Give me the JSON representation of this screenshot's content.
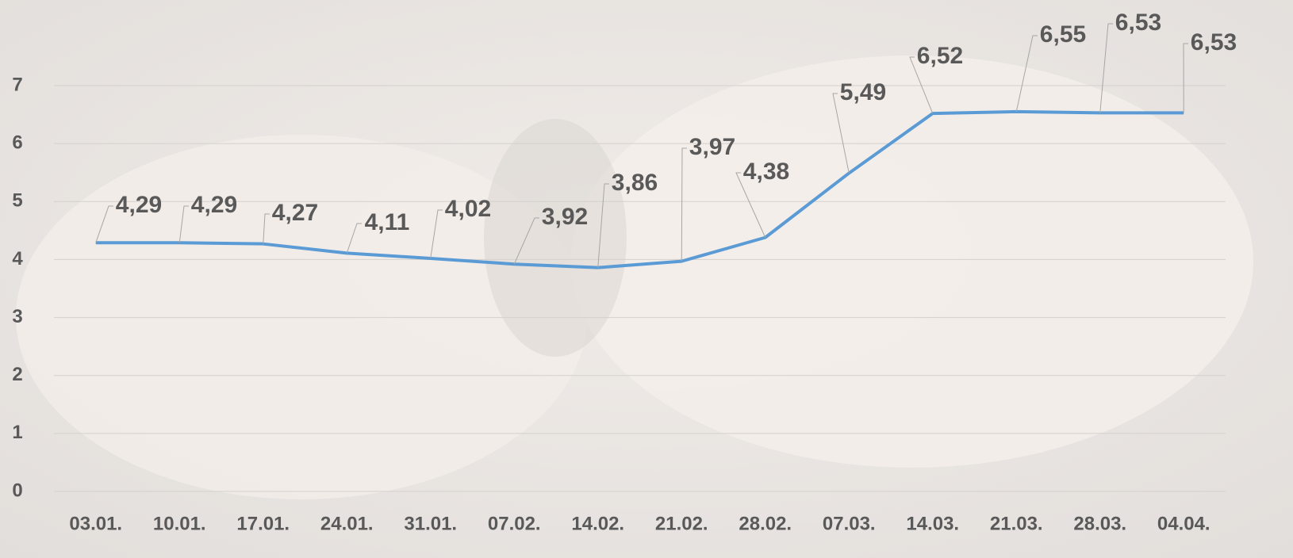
{
  "chart_data": {
    "type": "line",
    "categories": [
      "03.01.",
      "10.01.",
      "17.01.",
      "24.01.",
      "31.01.",
      "07.02.",
      "14.02.",
      "21.02.",
      "28.02.",
      "07.03.",
      "14.03.",
      "21.03.",
      "28.03.",
      "04.04."
    ],
    "series": [
      {
        "color": "#5b9bd5",
        "values": [
          4.29,
          4.29,
          4.27,
          4.11,
          4.02,
          3.92,
          3.86,
          3.97,
          4.38,
          5.49,
          6.52,
          6.55,
          6.53,
          6.53
        ],
        "value_labels": [
          "4,29",
          "4,29",
          "4,27",
          "4,11",
          "4,02",
          "3,92",
          "3,86",
          "3,97",
          "4,38",
          "5,49",
          "6,52",
          "6,55",
          "6,53",
          "6,53"
        ]
      }
    ],
    "ylim": [
      0,
      7
    ],
    "yticks": [
      0,
      1,
      2,
      3,
      4,
      5,
      6,
      7
    ],
    "grid": true
  }
}
